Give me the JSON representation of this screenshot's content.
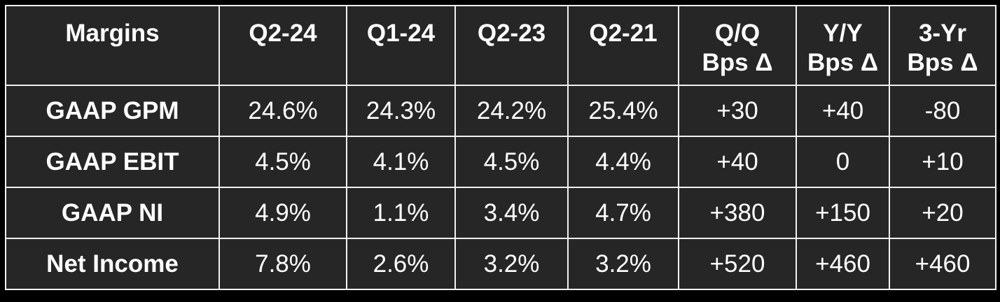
{
  "table": {
    "header": [
      "Margins",
      "Q2-24",
      "Q1-24",
      "Q2-23",
      "Q2-21",
      "Q/Q\nBps Δ",
      "Y/Y\nBps Δ",
      "3-Yr\nBps Δ"
    ],
    "rows": [
      [
        "GAAP GPM",
        "24.6%",
        "24.3%",
        "24.2%",
        "25.4%",
        "+30",
        "+40",
        "-80"
      ],
      [
        "GAAP EBIT",
        "4.5%",
        "4.1%",
        "4.5%",
        "4.4%",
        "+40",
        "0",
        "+10"
      ],
      [
        "GAAP NI",
        "4.9%",
        "1.1%",
        "3.4%",
        "4.7%",
        "+380",
        "+150",
        "+20"
      ],
      [
        "Net Income",
        "7.8%",
        "2.6%",
        "3.2%",
        "3.2%",
        "+520",
        "+460",
        "+460"
      ]
    ]
  }
}
